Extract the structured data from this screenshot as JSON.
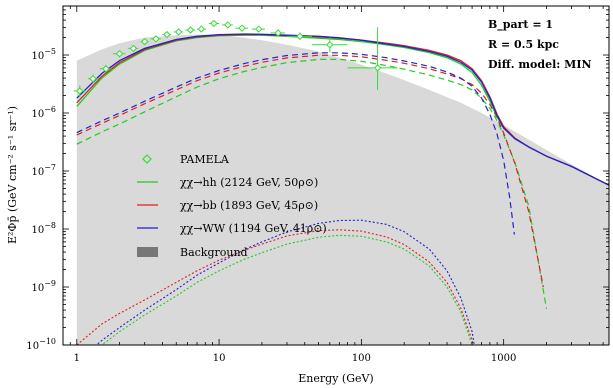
{
  "chart_data": {
    "type": "line",
    "xlabel": "Energy (GeV)",
    "ylabel": "E²Φp̄ (GeV cm⁻² s⁻¹ sr⁻¹)",
    "xscale": "log",
    "yscale": "log",
    "xlim": [
      0.8,
      5500
    ],
    "ylim": [
      1e-10,
      7e-05
    ],
    "x_ticks": [
      {
        "value": 1,
        "label": "1"
      },
      {
        "value": 10,
        "label": "10"
      },
      {
        "value": 100,
        "label": "100"
      },
      {
        "value": 1000,
        "label": "1000"
      }
    ],
    "y_ticks": [
      {
        "value": 1e-10,
        "base": "10",
        "exp": "−10"
      },
      {
        "value": 1e-09,
        "base": "10",
        "exp": "−9"
      },
      {
        "value": 1e-08,
        "base": "10",
        "exp": "−8"
      },
      {
        "value": 1e-07,
        "base": "10",
        "exp": "−7"
      },
      {
        "value": 1e-06,
        "base": "10",
        "exp": "−6"
      },
      {
        "value": 1e-05,
        "base": "10",
        "exp": "−5"
      }
    ],
    "annotations": [
      "B_part = 1",
      "R = 0.5 kpc",
      "Diff. model: MIN"
    ],
    "background": {
      "name": "Background",
      "color": "#d9d9d9",
      "x": [
        1,
        1.5,
        2,
        3,
        5,
        7,
        10,
        15,
        20,
        30,
        50,
        70,
        100,
        150,
        200,
        300,
        500,
        700,
        1000,
        1500,
        2000,
        3000,
        5500
      ],
      "y": [
        8e-06,
        1.25e-05,
        1.6e-05,
        2e-05,
        2.2e-05,
        2.25e-05,
        2.2e-05,
        2e-05,
        1.8e-05,
        1.5e-05,
        1.15e-05,
        9e-06,
        6.8e-06,
        4.8e-06,
        3.7e-06,
        2.5e-06,
        1.5e-06,
        1e-06,
        6.2e-07,
        3.5e-07,
        2.3e-07,
        1.3e-07,
        5.7e-08
      ]
    },
    "pamela": {
      "name": "PAMELA",
      "color": "#33dd33",
      "points": [
        {
          "x": 1.05,
          "y": 2.4e-06,
          "xerr": [
            0.95,
            1.15
          ],
          "yerr": [
            1.9e-06,
            3e-06
          ]
        },
        {
          "x": 1.3,
          "y": 3.9e-06,
          "xerr": [
            1.2,
            1.42
          ],
          "yerr": [
            3.3e-06,
            4.6e-06
          ]
        },
        {
          "x": 1.6,
          "y": 5.8e-06,
          "xerr": [
            1.45,
            1.75
          ],
          "yerr": [
            5e-06,
            6.7e-06
          ]
        },
        {
          "x": 2.0,
          "y": 1.05e-05,
          "xerr": [
            1.8,
            2.2
          ],
          "yerr": [
            9.5e-06,
            1.15e-05
          ]
        },
        {
          "x": 2.5,
          "y": 1.3e-05,
          "xerr": [
            2.3,
            2.7
          ],
          "yerr": [
            1.2e-05,
            1.4e-05
          ]
        },
        {
          "x": 3.0,
          "y": 1.7e-05,
          "xerr": [
            2.8,
            3.2
          ],
          "yerr": [
            1.6e-05,
            1.8e-05
          ]
        },
        {
          "x": 3.6,
          "y": 1.9e-05,
          "xerr": [
            3.3,
            3.9
          ],
          "yerr": [
            1.8e-05,
            2e-05
          ]
        },
        {
          "x": 4.3,
          "y": 2.25e-05,
          "xerr": [
            4.0,
            4.6
          ],
          "yerr": [
            2.1e-05,
            2.4e-05
          ]
        },
        {
          "x": 5.2,
          "y": 2.5e-05,
          "xerr": [
            4.8,
            5.6
          ],
          "yerr": [
            2.35e-05,
            2.65e-05
          ]
        },
        {
          "x": 6.3,
          "y": 2.7e-05,
          "xerr": [
            5.8,
            6.8
          ],
          "yerr": [
            2.55e-05,
            2.85e-05
          ]
        },
        {
          "x": 7.5,
          "y": 2.8e-05,
          "xerr": [
            7.0,
            8.1
          ],
          "yerr": [
            2.65e-05,
            2.95e-05
          ]
        },
        {
          "x": 9.2,
          "y": 3.5e-05,
          "xerr": [
            8.5,
            10
          ],
          "yerr": [
            3.3e-05,
            3.7e-05
          ]
        },
        {
          "x": 11.5,
          "y": 3.3e-05,
          "xerr": [
            10.5,
            12.5
          ],
          "yerr": [
            3.1e-05,
            3.5e-05
          ]
        },
        {
          "x": 14.5,
          "y": 2.9e-05,
          "xerr": [
            13,
            16
          ],
          "yerr": [
            2.7e-05,
            3.1e-05
          ]
        },
        {
          "x": 19,
          "y": 2.8e-05,
          "xerr": [
            17,
            21
          ],
          "yerr": [
            2.55e-05,
            3.05e-05
          ]
        },
        {
          "x": 26,
          "y": 2.4e-05,
          "xerr": [
            23,
            29
          ],
          "yerr": [
            2.15e-05,
            2.7e-05
          ]
        },
        {
          "x": 37,
          "y": 2.1e-05,
          "xerr": [
            30,
            45
          ],
          "yerr": [
            1.8e-05,
            2.45e-05
          ]
        },
        {
          "x": 60,
          "y": 1.5e-05,
          "xerr": [
            45,
            80
          ],
          "yerr": [
            1.1e-05,
            2e-05
          ]
        },
        {
          "x": 130,
          "y": 6e-06,
          "xerr": [
            80,
            180
          ],
          "yerr": [
            2.5e-06,
            3e-05
          ]
        }
      ]
    },
    "series": [
      {
        "name": "χχ→hh (2124 GeV, 50ρ⊙)",
        "color": "#22cc22",
        "total": {
          "x": [
            1,
            1.5,
            2,
            3,
            5,
            7,
            10,
            15,
            20,
            30,
            50,
            70,
            100,
            150,
            200,
            300,
            400,
            500,
            600,
            700,
            800,
            900,
            1000,
            1200,
            1500,
            2000,
            3000,
            5500
          ],
          "y": [
            1.3e-06,
            4e-06,
            7e-06,
            1.2e-05,
            1.75e-05,
            2e-05,
            2.15e-05,
            2.2e-05,
            2.2e-05,
            2.1e-05,
            1.95e-05,
            1.85e-05,
            1.7e-05,
            1.5e-05,
            1.35e-05,
            1.1e-05,
            9e-06,
            7e-06,
            5e-06,
            3e-06,
            1.6e-06,
            8.5e-07,
            5.5e-07,
            3.6e-07,
            2.6e-07,
            1.8e-07,
            1.2e-07,
            5.7e-08
          ]
        },
        "dm_high": {
          "x": [
            1,
            1.5,
            2,
            3,
            5,
            7,
            10,
            15,
            20,
            30,
            50,
            70,
            100,
            150,
            200,
            300,
            400,
            500,
            600,
            700,
            800,
            900,
            1000,
            1200,
            1500,
            2000
          ],
          "y": [
            2.9e-07,
            4.7e-07,
            6.5e-07,
            1.05e-06,
            1.9e-06,
            2.8e-06,
            3.9e-06,
            5.2e-06,
            6.1e-06,
            7.4e-06,
            8.4e-06,
            8.4e-06,
            7.8e-06,
            6.6e-06,
            5.7e-06,
            4.5e-06,
            3.7e-06,
            3.1e-06,
            2.5e-06,
            1.8e-06,
            1.2e-06,
            7.3e-07,
            4.2e-07,
            1.4e-07,
            2.5e-08,
            4.2e-10
          ]
        },
        "dm_low": {
          "x": [
            1,
            1.5,
            2,
            3,
            5,
            7,
            10,
            15,
            20,
            30,
            50,
            70,
            100,
            150,
            200,
            300,
            400,
            500,
            600,
            650
          ],
          "y": [
            4e-11,
            1e-10,
            1.7e-10,
            3.3e-10,
            7e-10,
            1.2e-09,
            1.9e-09,
            3e-09,
            3.9e-09,
            5.5e-09,
            7.2e-09,
            7.8e-09,
            7.5e-09,
            6e-09,
            4.5e-09,
            2.3e-09,
            1e-09,
            3.7e-10,
            1e-10,
            4e-11
          ]
        }
      },
      {
        "name": "χχ→bb (1893 GeV, 45ρ⊙)",
        "color": "#dd2222",
        "total": {
          "x": [
            1,
            1.5,
            2,
            3,
            5,
            7,
            10,
            15,
            20,
            30,
            50,
            70,
            100,
            150,
            200,
            300,
            400,
            500,
            600,
            700,
            800,
            900,
            1000,
            1200,
            1500,
            2000,
            3000,
            5500
          ],
          "y": [
            1.5e-06,
            4.3e-06,
            7.4e-06,
            1.25e-05,
            1.8e-05,
            2.05e-05,
            2.2e-05,
            2.25e-05,
            2.25e-05,
            2.15e-05,
            2.05e-05,
            1.95e-05,
            1.8e-05,
            1.6e-05,
            1.45e-05,
            1.2e-05,
            1e-05,
            8e-06,
            5.8e-06,
            3.6e-06,
            1.9e-06,
            9.5e-07,
            5.8e-07,
            3.7e-07,
            2.6e-07,
            1.8e-07,
            1.2e-07,
            5.7e-08
          ]
        },
        "dm_high": {
          "x": [
            1,
            1.5,
            2,
            3,
            5,
            7,
            10,
            15,
            20,
            30,
            50,
            70,
            100,
            150,
            200,
            300,
            400,
            500,
            600,
            700,
            800,
            900,
            1000,
            1200,
            1500,
            1900
          ],
          "y": [
            4.2e-07,
            6.6e-07,
            9.1e-07,
            1.45e-06,
            2.5e-06,
            3.6e-06,
            4.9e-06,
            6.4e-06,
            7.5e-06,
            8.9e-06,
            9.9e-06,
            9.9e-06,
            9.3e-06,
            8.1e-06,
            7.2e-06,
            5.8e-06,
            4.7e-06,
            3.9e-06,
            3.1e-06,
            2.2e-06,
            1.4e-06,
            8.2e-07,
            4.5e-07,
            1.35e-07,
            2e-08,
            1e-09
          ]
        },
        "dm_low": {
          "x": [
            1,
            1.5,
            2,
            3,
            5,
            7,
            10,
            15,
            20,
            30,
            50,
            70,
            100,
            150,
            200,
            300,
            400,
            500,
            600,
            650
          ],
          "y": [
            1e-10,
            2.3e-10,
            3.5e-10,
            6e-10,
            1.2e-09,
            1.9e-09,
            2.9e-09,
            4.3e-09,
            5.5e-09,
            7.6e-09,
            9.4e-09,
            9.7e-09,
            9.2e-09,
            7.3e-09,
            5.4e-09,
            2.7e-09,
            1.2e-09,
            4.3e-10,
            1.2e-10,
            4e-11
          ]
        }
      },
      {
        "name": "χχ→WW (1194 GeV, 41ρ⊙)",
        "color": "#2222cc",
        "total": {
          "x": [
            1,
            1.5,
            2,
            3,
            5,
            7,
            10,
            15,
            20,
            30,
            50,
            70,
            100,
            150,
            200,
            300,
            400,
            500,
            600,
            700,
            800,
            900,
            1000,
            1200,
            1500,
            2000,
            3000,
            5500
          ],
          "y": [
            1.8e-06,
            4.8e-06,
            8e-06,
            1.3e-05,
            1.85e-05,
            2.1e-05,
            2.25e-05,
            2.3e-05,
            2.28e-05,
            2.2e-05,
            2.1e-05,
            1.98e-05,
            1.8e-05,
            1.55e-05,
            1.4e-05,
            1.15e-05,
            9.5e-06,
            7.5e-06,
            5.5e-06,
            3.4e-06,
            1.8e-06,
            9e-07,
            5.5e-07,
            3.6e-07,
            2.6e-07,
            1.8e-07,
            1.2e-07,
            5.7e-08
          ]
        },
        "dm_high": {
          "x": [
            1,
            1.5,
            2,
            3,
            5,
            7,
            10,
            15,
            20,
            30,
            50,
            70,
            100,
            150,
            200,
            300,
            400,
            500,
            600,
            700,
            800,
            900,
            1000,
            1100,
            1190
          ],
          "y": [
            4.6e-07,
            7.3e-07,
            1e-06,
            1.6e-06,
            2.8e-06,
            4e-06,
            5.4e-06,
            7.1e-06,
            8.3e-06,
            9.8e-06,
            1.09e-05,
            1.09e-05,
            1.03e-05,
            9e-06,
            7.9e-06,
            6.4e-06,
            5.1e-06,
            4e-06,
            2.9e-06,
            1.8e-06,
            9.5e-07,
            4.3e-07,
            1.5e-07,
            3.7e-08,
            8e-09
          ]
        },
        "dm_low": {
          "x": [
            1,
            1.5,
            2,
            3,
            5,
            7,
            10,
            15,
            20,
            30,
            50,
            70,
            100,
            150,
            200,
            300,
            400,
            500,
            600,
            650
          ],
          "y": [
            5e-11,
            1.2e-10,
            2e-10,
            4e-10,
            9e-10,
            1.6e-09,
            2.6e-09,
            4.4e-09,
            6e-09,
            8.9e-09,
            1.25e-08,
            1.4e-08,
            1.42e-08,
            1.2e-08,
            9e-09,
            4.5e-09,
            1.9e-09,
            6.5e-10,
            1.7e-10,
            5e-11
          ]
        }
      }
    ],
    "legend": {
      "placement": "center-left",
      "entries": [
        {
          "label": "PAMELA",
          "kind": "marker",
          "color": "#33dd33"
        },
        {
          "label": "χχ→hh  (2124 GeV, 50ρ⊙)",
          "kind": "line",
          "color": "#22cc22"
        },
        {
          "label": "χχ→bb  (1893 GeV, 45ρ⊙)",
          "kind": "line",
          "color": "#dd2222"
        },
        {
          "label": "χχ→WW  (1194 GeV, 41ρ⊙)",
          "kind": "line",
          "color": "#2222cc"
        },
        {
          "label": "Background",
          "kind": "patch",
          "color": "#777777"
        }
      ]
    }
  }
}
